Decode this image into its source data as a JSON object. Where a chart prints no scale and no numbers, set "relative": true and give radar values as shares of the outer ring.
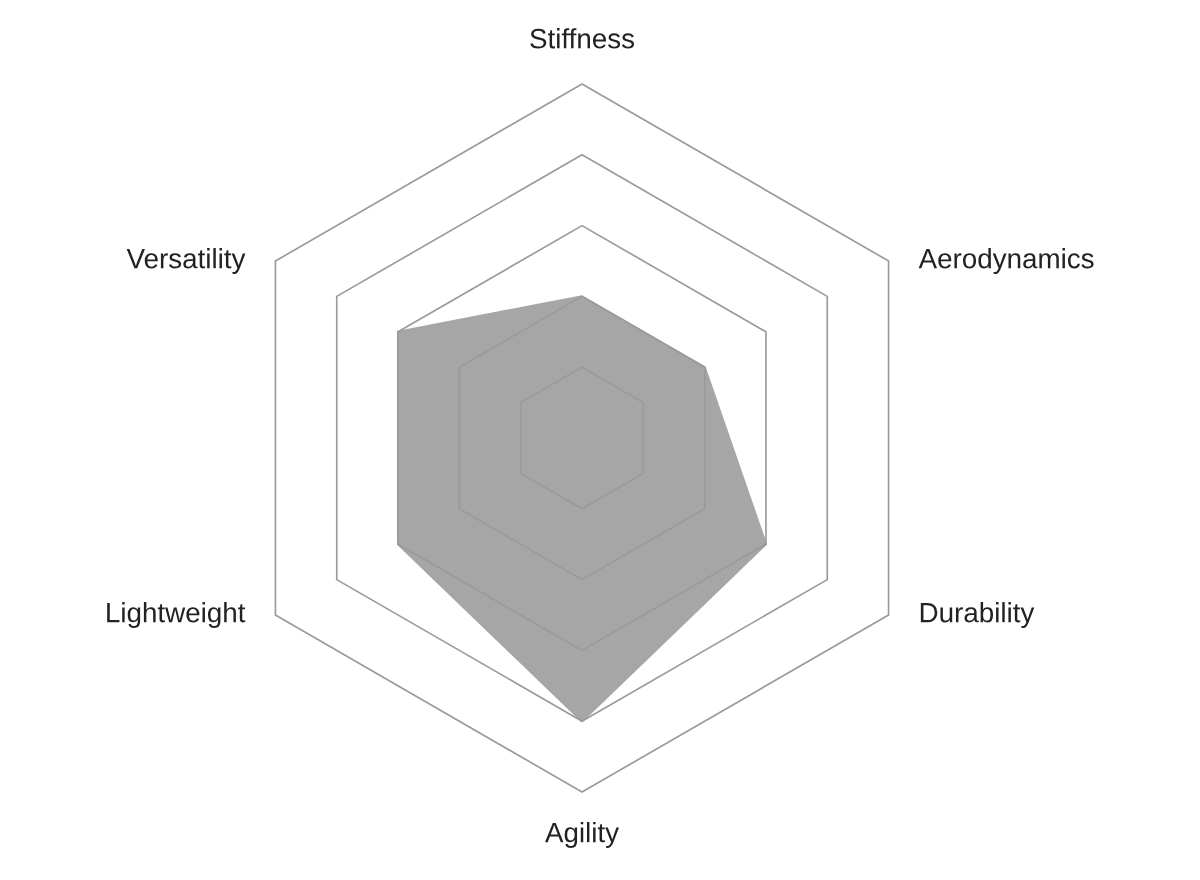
{
  "chart_data": {
    "type": "radar",
    "categories": [
      "Stiffness",
      "Aerodynamics",
      "Durability",
      "Agility",
      "Lightweight",
      "Versatility"
    ],
    "relative": true,
    "grid": true,
    "series": [
      {
        "color": "#a6a6a6",
        "values": [
          0.4,
          0.4,
          0.6,
          0.8,
          0.6,
          0.6
        ]
      }
    ]
  }
}
